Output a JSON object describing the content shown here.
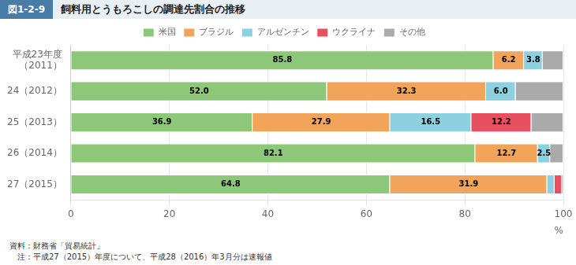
{
  "chart_data": {
    "type": "bar",
    "orientation": "horizontal",
    "stacked": true,
    "title": [
      "図1-2-9",
      "飼料用とうもろこしの調達先割合の推移"
    ],
    "x_label": "%",
    "categories": [
      "平成23年度\n（2011）",
      "24（2012）",
      "25（2013）",
      "26（2014）",
      "27（2015）"
    ],
    "series": [
      {
        "name": "米国",
        "color": "#8dc87a",
        "values": [
          85.8,
          52.0,
          36.9,
          82.1,
          64.8
        ],
        "value_labels": [
          "85.8",
          "52.0",
          "36.9",
          "82.1",
          "64.8"
        ]
      },
      {
        "name": "ブラジル",
        "color": "#f2a55a",
        "values": [
          6.2,
          32.3,
          27.9,
          12.7,
          31.9
        ],
        "value_labels": [
          "6.2",
          "32.3",
          "27.9",
          "12.7",
          "31.9"
        ]
      },
      {
        "name": "アルゼンチン",
        "color": "#8dd0e0",
        "values": [
          3.8,
          6.0,
          16.5,
          2.5,
          1.5
        ],
        "value_labels": [
          "3.8",
          "6.0",
          "16.5",
          "2.5",
          null
        ]
      },
      {
        "name": "ウクライナ",
        "color": "#e85060",
        "values": [
          0.0,
          0.0,
          12.2,
          0.0,
          1.5
        ],
        "value_labels": [
          null,
          null,
          "12.2",
          null,
          null
        ]
      },
      {
        "name": "その他",
        "color": "#aaaaaa",
        "values": [
          4.2,
          9.7,
          6.5,
          2.7,
          0.3
        ],
        "value_labels": [
          null,
          null,
          null,
          null,
          null
        ]
      }
    ],
    "xlim": [
      0,
      100
    ],
    "xticks": [
      0,
      20,
      40,
      60,
      80,
      100
    ],
    "grid": true,
    "legend": "top",
    "data_labels": true,
    "annotations": [
      "資料：財務省「貿易統計」",
      "　注：平成27（2015）年度について、平成28（2016）年3月分は速報値"
    ]
  }
}
